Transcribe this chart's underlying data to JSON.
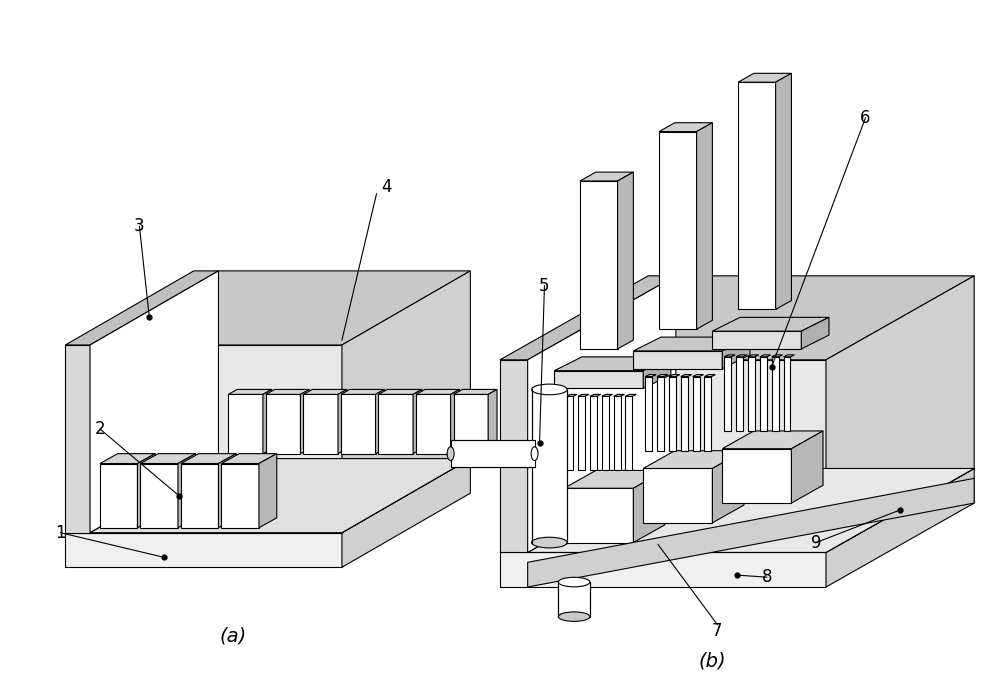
{
  "bg_color": "#ffffff",
  "lc": "#000000",
  "gray1": "#d0d0d0",
  "gray2": "#b8b8b8",
  "gray3": "#e8e8e8",
  "white": "#ffffff",
  "title_a": "(a)",
  "title_b": "(b)",
  "fig_width": 10.0,
  "fig_height": 6.87,
  "label_fs": 12
}
